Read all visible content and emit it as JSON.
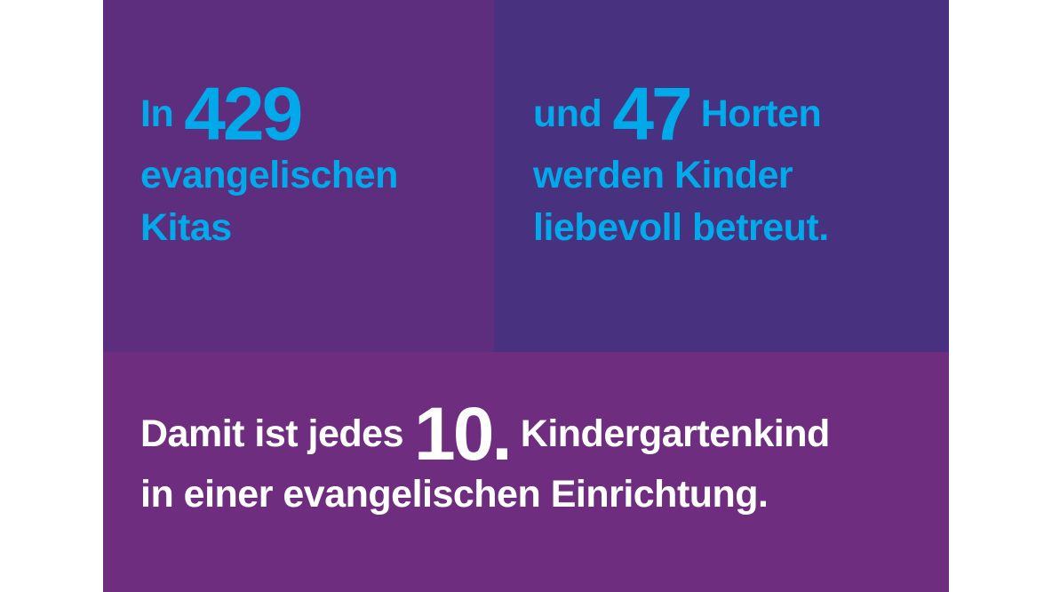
{
  "colors": {
    "panel_left": "#5e2e7e",
    "panel_right": "#48317f",
    "panel_bottom": "#6f2d7f",
    "accent_blue": "#00a9ea",
    "text_white": "#ffffff"
  },
  "left": {
    "prefix": "In",
    "number": "429",
    "line2": "evangelischen",
    "line3": "Kitas"
  },
  "right": {
    "prefix": "und",
    "number": "47",
    "suffix": "Horten",
    "line2": "werden Kinder",
    "line3": "liebevoll betreut."
  },
  "bottom": {
    "prefix": "Damit ist jedes",
    "number": "10.",
    "suffix": "Kindergartenkind",
    "line2": "in einer evangelischen Einrichtung."
  }
}
